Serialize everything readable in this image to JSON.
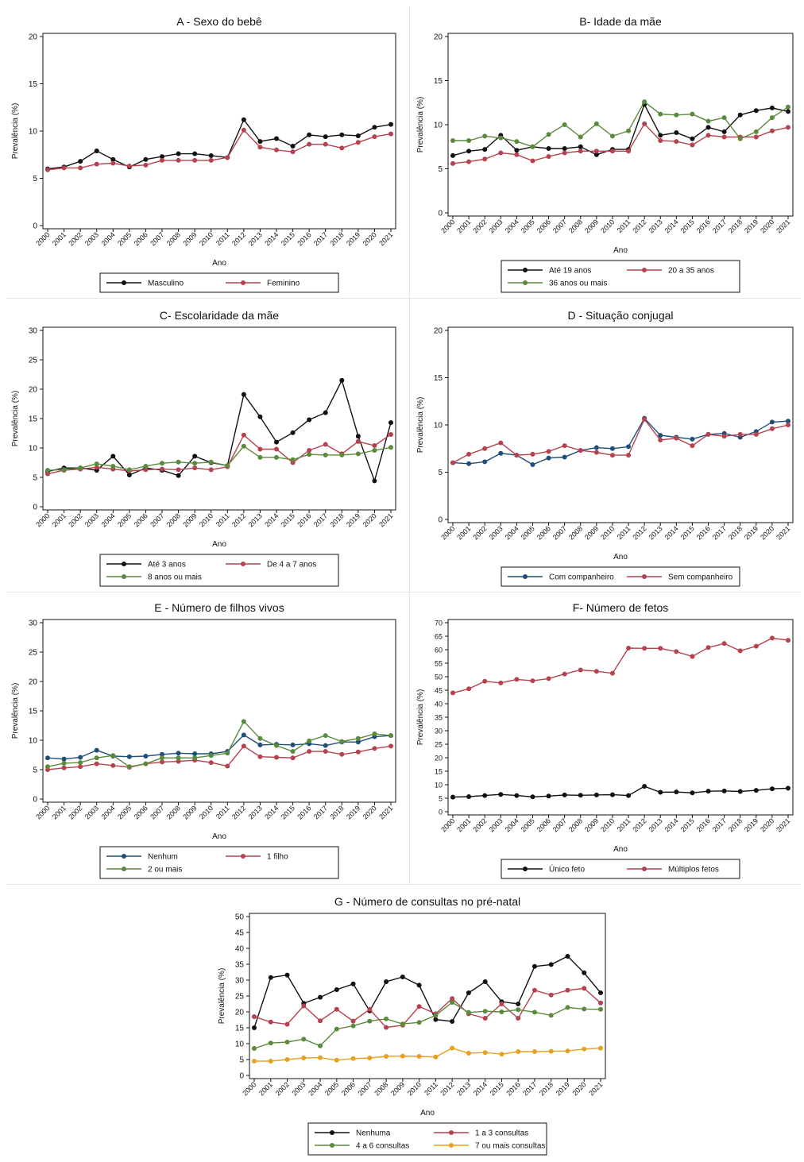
{
  "colors": {
    "black": "#111111",
    "red": "#b5424e",
    "green": "#5a8a3c",
    "navy": "#1f4e79",
    "orange": "#e8a020",
    "border": "#111111"
  },
  "years": [
    "2000",
    "2001",
    "2002",
    "2003",
    "2004",
    "2005",
    "2006",
    "2007",
    "2008",
    "2009",
    "2010",
    "2011",
    "2012",
    "2013",
    "2014",
    "2015",
    "2016",
    "2017",
    "2018",
    "2019",
    "2020",
    "2021"
  ],
  "chart_data": [
    {
      "id": "A",
      "type": "line",
      "title": "A - Sexo do bebê",
      "xlabel": "Ano",
      "ylabel": "Prevalência (%)",
      "ylim": [
        0,
        20
      ],
      "yticks": [
        0,
        5,
        10,
        15,
        20
      ],
      "legend_columns": 2,
      "series": [
        {
          "name": "Masculino",
          "color": "black",
          "values": [
            6.0,
            6.2,
            6.8,
            7.9,
            7.0,
            6.2,
            7.0,
            7.3,
            7.6,
            7.6,
            7.4,
            7.2,
            11.2,
            8.9,
            9.2,
            8.4,
            9.6,
            9.4,
            9.6,
            9.5,
            10.4,
            10.7
          ]
        },
        {
          "name": "Feminino",
          "color": "red",
          "values": [
            5.9,
            6.1,
            6.1,
            6.5,
            6.6,
            6.3,
            6.4,
            6.9,
            6.9,
            6.9,
            6.9,
            7.2,
            10.1,
            8.3,
            8.0,
            7.8,
            8.6,
            8.6,
            8.2,
            8.8,
            9.4,
            9.7
          ]
        }
      ]
    },
    {
      "id": "B",
      "type": "line",
      "title": "B- Idade da mãe",
      "xlabel": "Ano",
      "ylabel": "Prevalência (%)",
      "ylim": [
        0,
        20
      ],
      "yticks": [
        0,
        5,
        10,
        15,
        20
      ],
      "legend_columns": 2,
      "series": [
        {
          "name": "Até 19 anos",
          "color": "black",
          "values": [
            6.5,
            7.0,
            7.2,
            8.8,
            7.1,
            7.5,
            7.3,
            7.3,
            7.5,
            6.6,
            7.2,
            7.2,
            12.3,
            8.8,
            9.1,
            8.4,
            9.7,
            9.2,
            11.1,
            11.6,
            11.9,
            11.5
          ]
        },
        {
          "name": "20 a 35 anos",
          "color": "red",
          "values": [
            5.6,
            5.8,
            6.1,
            6.8,
            6.6,
            5.9,
            6.4,
            6.8,
            7.0,
            7.0,
            7.0,
            7.0,
            10.1,
            8.2,
            8.1,
            7.7,
            8.8,
            8.6,
            8.6,
            8.6,
            9.3,
            9.7
          ]
        },
        {
          "name": "36 anos ou mais",
          "color": "green",
          "values": [
            8.2,
            8.2,
            8.7,
            8.5,
            8.1,
            7.5,
            8.9,
            10.0,
            8.6,
            10.1,
            8.7,
            9.3,
            12.6,
            11.2,
            11.1,
            11.2,
            10.4,
            10.8,
            8.4,
            9.2,
            10.8,
            12.0
          ]
        }
      ]
    },
    {
      "id": "C",
      "type": "line",
      "title": "C- Escolaridade da mãe",
      "xlabel": "Ano",
      "ylabel": "Prevalência (%)",
      "ylim": [
        0,
        30
      ],
      "yticks": [
        0,
        5,
        10,
        15,
        20,
        25,
        30
      ],
      "legend_columns": 2,
      "series": [
        {
          "name": "Até 3 anos",
          "color": "black",
          "values": [
            6.0,
            6.6,
            6.6,
            6.2,
            8.6,
            5.4,
            6.6,
            6.2,
            5.3,
            8.6,
            7.5,
            7.0,
            19.1,
            15.3,
            11.0,
            12.6,
            14.8,
            16.0,
            21.5,
            12.0,
            4.4,
            14.3
          ]
        },
        {
          "name": "De 4 a 7 anos",
          "color": "red",
          "values": [
            5.6,
            6.2,
            6.4,
            6.7,
            6.4,
            6.1,
            6.3,
            6.4,
            6.3,
            6.6,
            6.3,
            6.8,
            12.2,
            9.8,
            9.8,
            7.5,
            9.6,
            10.6,
            9.0,
            11.1,
            10.4,
            12.3
          ]
        },
        {
          "name": "8 anos ou mais",
          "color": "green",
          "values": [
            6.2,
            6.3,
            6.6,
            7.3,
            6.9,
            6.3,
            6.9,
            7.4,
            7.6,
            7.4,
            7.6,
            7.0,
            10.3,
            8.4,
            8.4,
            8.0,
            8.9,
            8.8,
            8.8,
            9.0,
            9.6,
            10.1
          ]
        }
      ]
    },
    {
      "id": "D",
      "type": "line",
      "title": "D - Situação conjugal",
      "xlabel": "Ano",
      "ylabel": "Prevalência (%)",
      "ylim": [
        0,
        20
      ],
      "yticks": [
        0,
        5,
        10,
        15,
        20
      ],
      "legend_columns": 2,
      "series": [
        {
          "name": "Com companheiro",
          "color": "navy",
          "values": [
            6.0,
            5.9,
            6.1,
            7.0,
            6.8,
            5.8,
            6.5,
            6.6,
            7.3,
            7.6,
            7.5,
            7.7,
            10.7,
            8.9,
            8.7,
            8.5,
            9.0,
            9.1,
            8.7,
            9.3,
            10.3,
            10.4
          ]
        },
        {
          "name": "Sem companheiro",
          "color": "red",
          "values": [
            6.0,
            6.9,
            7.5,
            8.1,
            6.8,
            6.9,
            7.2,
            7.8,
            7.3,
            7.1,
            6.8,
            6.8,
            10.6,
            8.4,
            8.6,
            7.8,
            9.0,
            8.8,
            9.0,
            9.0,
            9.6,
            10.0
          ]
        }
      ]
    },
    {
      "id": "E",
      "type": "line",
      "title": "E - Número de filhos vivos",
      "xlabel": "Ano",
      "ylabel": "Prevalência (%)",
      "ylim": [
        0,
        30
      ],
      "yticks": [
        0,
        5,
        10,
        15,
        20,
        25,
        30
      ],
      "legend_columns": 2,
      "series": [
        {
          "name": "Nenhum",
          "color": "navy",
          "values": [
            7.0,
            6.8,
            7.1,
            8.3,
            7.3,
            7.2,
            7.3,
            7.6,
            7.8,
            7.7,
            7.7,
            8.1,
            10.9,
            9.2,
            9.3,
            9.2,
            9.4,
            9.1,
            9.7,
            9.7,
            10.6,
            10.8
          ]
        },
        {
          "name": "1 filho",
          "color": "red",
          "values": [
            5.0,
            5.3,
            5.5,
            6.0,
            5.7,
            5.4,
            6.0,
            6.3,
            6.4,
            6.6,
            6.2,
            5.6,
            9.0,
            7.2,
            7.1,
            7.0,
            8.1,
            8.1,
            7.6,
            8.0,
            8.6,
            9.0
          ]
        },
        {
          "name": "2 ou mais",
          "color": "green",
          "values": [
            5.5,
            6.1,
            6.2,
            7.0,
            7.4,
            5.5,
            6.0,
            7.0,
            7.0,
            7.0,
            7.4,
            7.8,
            13.2,
            10.3,
            9.1,
            8.1,
            9.9,
            10.8,
            9.8,
            10.3,
            11.1,
            10.8
          ]
        }
      ]
    },
    {
      "id": "F",
      "type": "line",
      "title": "F- Número de fetos",
      "xlabel": "Ano",
      "ylabel": "Prevalência (%)",
      "ylim": [
        0,
        70
      ],
      "yticks": [
        0,
        5,
        10,
        15,
        20,
        25,
        30,
        35,
        40,
        45,
        50,
        55,
        60,
        65,
        70
      ],
      "legend_columns": 2,
      "series": [
        {
          "name": "Único feto",
          "color": "black",
          "values": [
            5.4,
            5.6,
            6.0,
            6.4,
            6.0,
            5.5,
            5.8,
            6.2,
            6.1,
            6.2,
            6.3,
            6.0,
            9.4,
            7.2,
            7.3,
            7.0,
            7.6,
            7.7,
            7.5,
            7.9,
            8.5,
            8.7
          ]
        },
        {
          "name": "Múltiplos fetos",
          "color": "red",
          "values": [
            44.0,
            45.5,
            48.3,
            47.7,
            49.0,
            48.5,
            49.3,
            51.0,
            52.5,
            52.0,
            51.3,
            60.6,
            60.5,
            60.5,
            59.3,
            57.5,
            60.8,
            62.3,
            59.6,
            61.3,
            64.3,
            63.5
          ]
        }
      ]
    },
    {
      "id": "G",
      "type": "line",
      "title": "G - Número de consultas no pré-natal",
      "xlabel": "Ano",
      "ylabel": "Prevalência (%)",
      "ylim": [
        0,
        50
      ],
      "yticks": [
        0,
        5,
        10,
        15,
        20,
        25,
        30,
        35,
        40,
        45,
        50
      ],
      "legend_columns": 2,
      "series": [
        {
          "name": "Nenhuma",
          "color": "black",
          "values": [
            15.0,
            30.8,
            31.6,
            22.7,
            24.6,
            27.0,
            28.8,
            20.3,
            29.5,
            31.0,
            28.4,
            17.6,
            17.0,
            26.0,
            29.5,
            23.2,
            22.5,
            34.3,
            34.9,
            37.5,
            32.3,
            26.0
          ]
        },
        {
          "name": "1 a 3 consultas",
          "color": "red",
          "values": [
            18.5,
            16.8,
            16.1,
            21.9,
            17.2,
            20.8,
            17.1,
            20.8,
            15.1,
            15.8,
            21.7,
            19.4,
            24.2,
            19.4,
            18.0,
            22.5,
            18.0,
            26.8,
            25.3,
            26.8,
            27.4,
            22.8
          ]
        },
        {
          "name": "4 a 6 consultas",
          "color": "green",
          "values": [
            8.5,
            10.2,
            10.5,
            11.4,
            9.3,
            14.6,
            15.6,
            17.1,
            17.8,
            16.2,
            16.7,
            18.9,
            23.0,
            19.8,
            20.2,
            20.0,
            20.7,
            19.9,
            18.9,
            21.4,
            20.9,
            20.8
          ]
        },
        {
          "name": "7 ou mais consultas",
          "color": "orange",
          "values": [
            4.5,
            4.5,
            5.0,
            5.5,
            5.6,
            4.8,
            5.3,
            5.5,
            6.0,
            6.1,
            6.0,
            5.8,
            8.6,
            7.0,
            7.2,
            6.7,
            7.5,
            7.5,
            7.6,
            7.7,
            8.3,
            8.6
          ]
        }
      ]
    }
  ]
}
